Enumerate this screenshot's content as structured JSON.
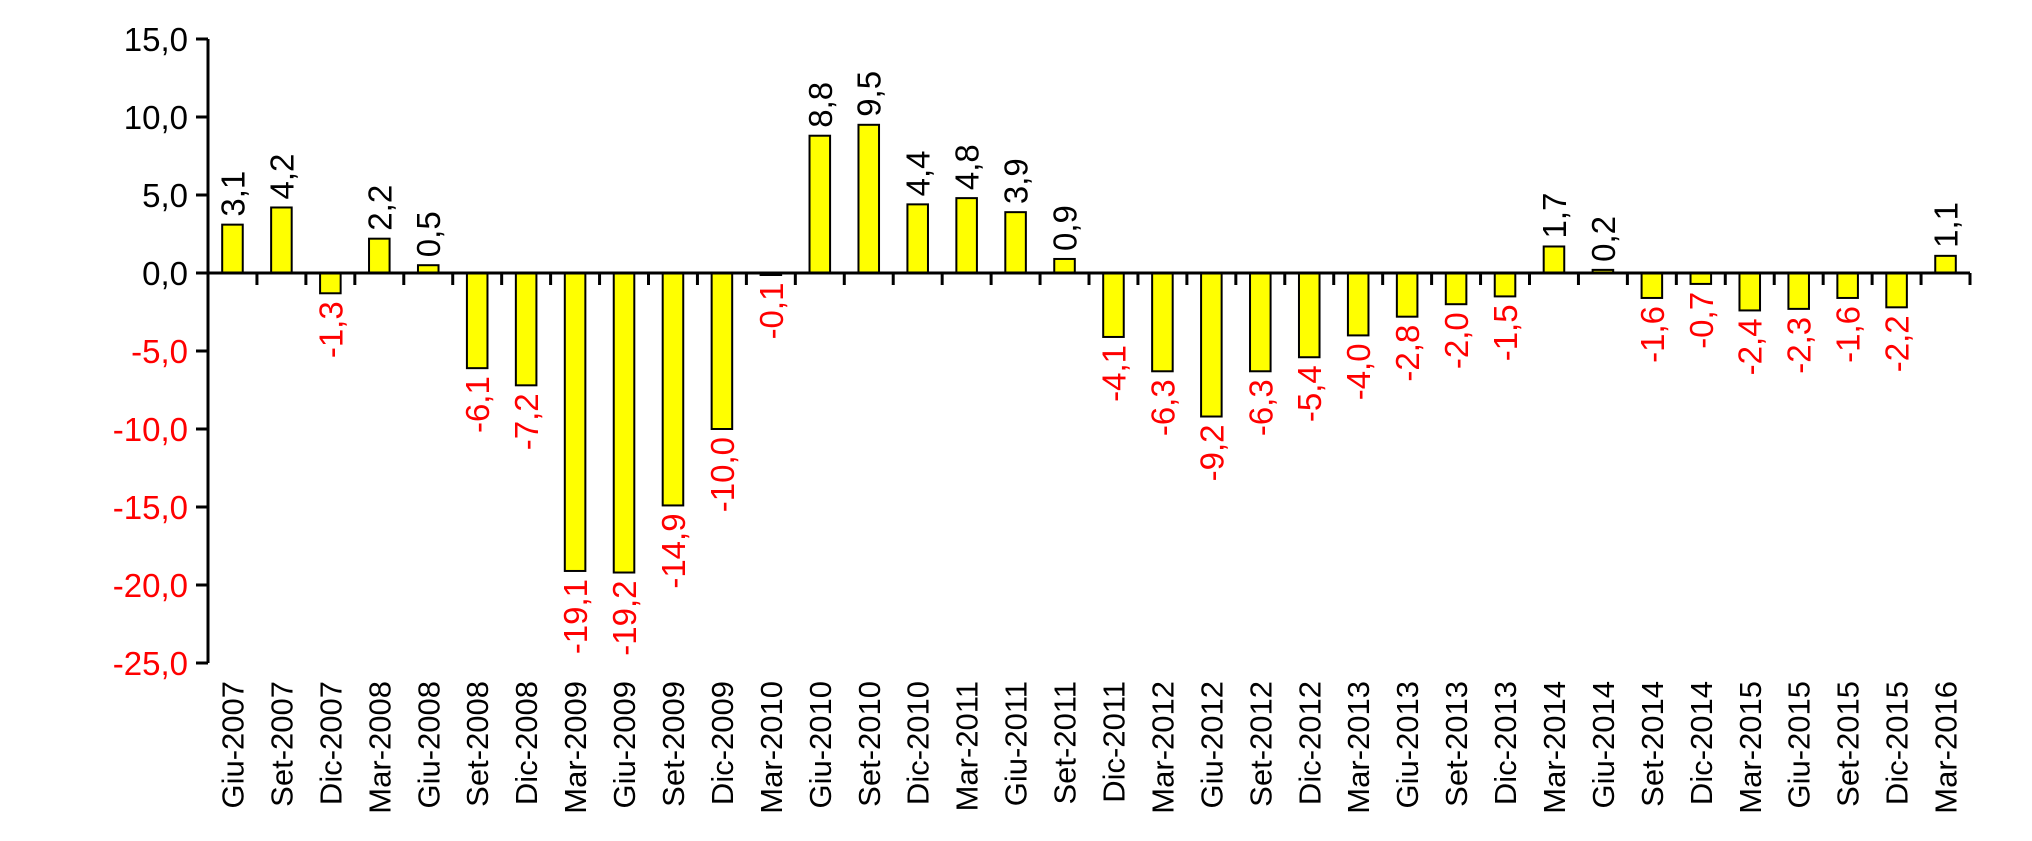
{
  "chart_data": {
    "type": "bar",
    "title": "",
    "xlabel": "",
    "ylabel": "",
    "ylim": [
      -25,
      15
    ],
    "yticks": [
      "15,0",
      "10,0",
      "5,0",
      "0,0",
      "-5,0",
      "-10,0",
      "-15,0",
      "-20,0",
      "-25,0"
    ],
    "ytick_values": [
      15,
      10,
      5,
      0,
      -5,
      -10,
      -15,
      -20,
      -25
    ],
    "grid": false,
    "legend": "none",
    "colors": {
      "bar_fill": "#ffff00",
      "bar_stroke": "#000000",
      "positive_label": "#000000",
      "negative_label": "#ff0000"
    },
    "categories": [
      "Giu-2007",
      "Set-2007",
      "Dic-2007",
      "Mar-2008",
      "Giu-2008",
      "Set-2008",
      "Dic-2008",
      "Mar-2009",
      "Giu-2009",
      "Set-2009",
      "Dic-2009",
      "Mar-2010",
      "Giu-2010",
      "Set-2010",
      "Dic-2010",
      "Mar-2011",
      "Giu-2011",
      "Set-2011",
      "Dic-2011",
      "Mar-2012",
      "Giu-2012",
      "Set-2012",
      "Dic-2012",
      "Mar-2013",
      "Giu-2013",
      "Set-2013",
      "Dic-2013",
      "Mar-2014",
      "Giu-2014",
      "Set-2014",
      "Dic-2014",
      "Mar-2015",
      "Giu-2015",
      "Set-2015",
      "Dic-2015",
      "Mar-2016"
    ],
    "values": [
      3.1,
      4.2,
      -1.3,
      2.2,
      0.5,
      -6.1,
      -7.2,
      -19.1,
      -19.2,
      -14.9,
      -10.0,
      -0.1,
      8.8,
      9.5,
      4.4,
      4.8,
      3.9,
      0.9,
      -4.1,
      -6.3,
      -9.2,
      -6.3,
      -5.4,
      -4.0,
      -2.8,
      -2.0,
      -1.5,
      1.7,
      0.2,
      -1.6,
      -0.7,
      -2.4,
      -2.3,
      -1.6,
      -2.2,
      1.1
    ],
    "data_labels": [
      "3,1",
      "4,2",
      "-1,3",
      "2,2",
      "0,5",
      "-6,1",
      "-7,2",
      "-19,1",
      "-19,2",
      "-14,9",
      "-10,0",
      "-0,1",
      "8,8",
      "9,5",
      "4,4",
      "4,8",
      "3,9",
      "0,9",
      "-4,1",
      "-6,3",
      "-9,2",
      "-6,3",
      "-5,4",
      "-4,0",
      "-2,8",
      "-2,0",
      "-1,5",
      "1,7",
      "0,2",
      "-1,6",
      "-0,7",
      "-2,4",
      "-2,3",
      "-1,6",
      "-2,2",
      "1,1"
    ]
  }
}
